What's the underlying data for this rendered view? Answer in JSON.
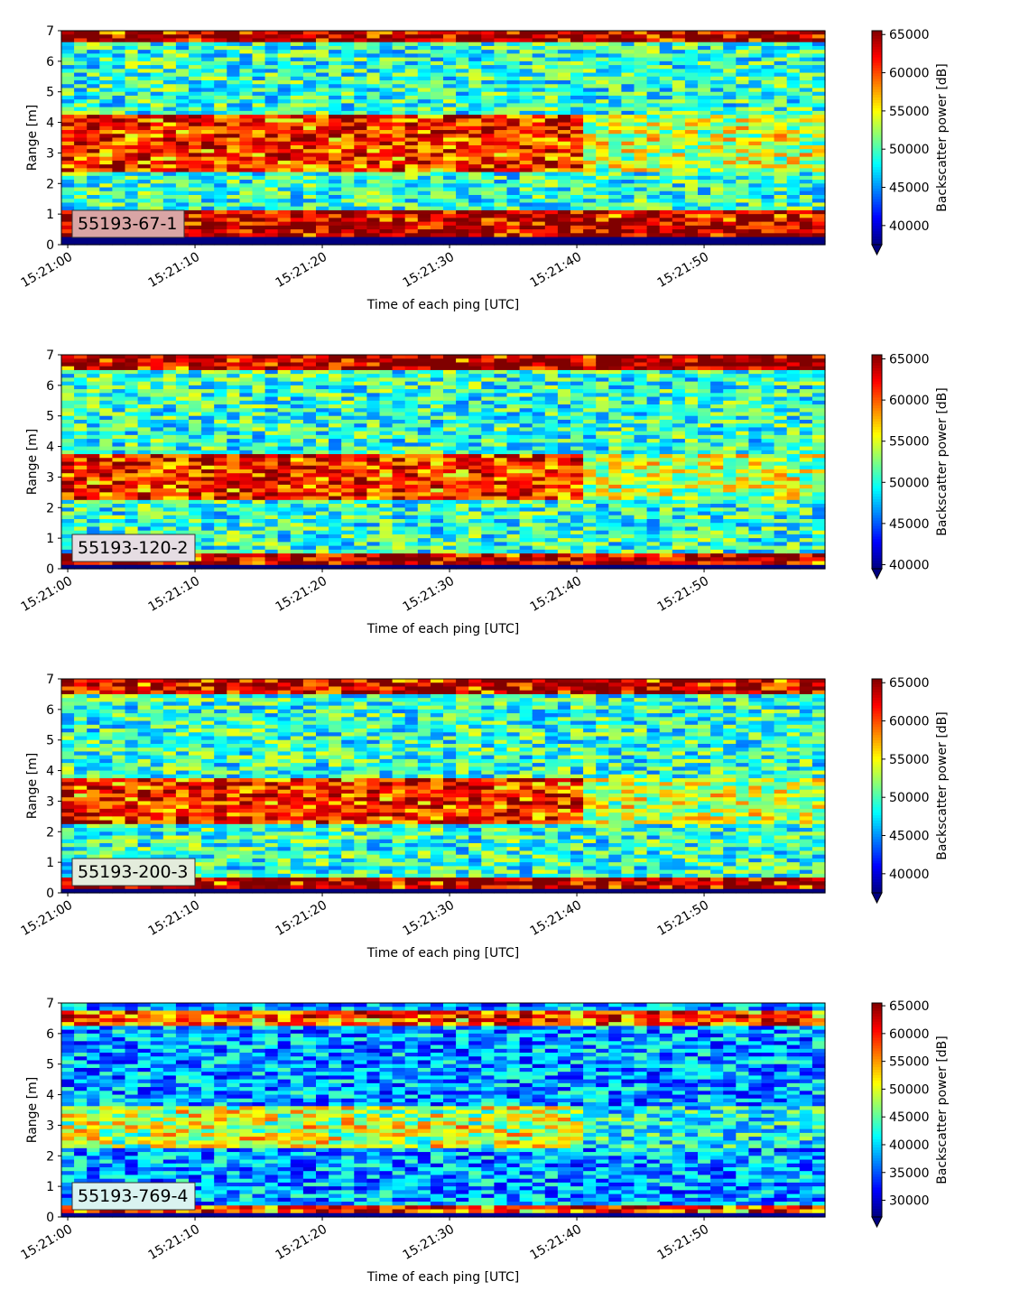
{
  "chart_data": [
    {
      "type": "heatmap",
      "label": "55193-67-1",
      "xlabel": "Time of each ping [UTC]",
      "ylabel": "Range [m]",
      "colorbar_label": "Backscatter power [dB]",
      "x_ticks": [
        "15:21:00",
        "15:21:10",
        "15:21:20",
        "15:21:30",
        "15:21:40",
        "15:21:50"
      ],
      "x_range_seconds": [
        -0.5,
        59.5
      ],
      "y_ticks": [
        0,
        1,
        2,
        3,
        4,
        5,
        6,
        7
      ],
      "ylim": [
        0,
        7
      ],
      "colorbar_ticks": [
        40000,
        45000,
        50000,
        55000,
        60000,
        65000
      ],
      "colorbar_range": [
        37500,
        65500
      ],
      "colormap": "jet",
      "colorbar_extend": "min",
      "band_structure": [
        {
          "range_m": [
            0.25,
            1.1
          ],
          "level": "high"
        },
        {
          "range_m": [
            2.4,
            4.2
          ],
          "level": "high",
          "fades_after": "15:21:40"
        },
        {
          "range_m": [
            6.6,
            7.0
          ],
          "level": "high"
        }
      ],
      "label_box_color": "#d9a5a5"
    },
    {
      "type": "heatmap",
      "label": "55193-120-2",
      "xlabel": "Time of each ping [UTC]",
      "ylabel": "Range [m]",
      "colorbar_label": "Backscatter power [dB]",
      "x_ticks": [
        "15:21:00",
        "15:21:10",
        "15:21:20",
        "15:21:30",
        "15:21:40",
        "15:21:50"
      ],
      "x_range_seconds": [
        -0.5,
        59.5
      ],
      "y_ticks": [
        0,
        1,
        2,
        3,
        4,
        5,
        6,
        7
      ],
      "ylim": [
        0,
        7
      ],
      "colorbar_ticks": [
        40000,
        45000,
        50000,
        55000,
        60000,
        65000
      ],
      "colorbar_range": [
        39500,
        65500
      ],
      "colormap": "jet",
      "colorbar_extend": "min",
      "band_structure": [
        {
          "range_m": [
            0.15,
            0.45
          ],
          "level": "high"
        },
        {
          "range_m": [
            2.2,
            3.8
          ],
          "level": "high",
          "fades_after": "15:21:40"
        },
        {
          "range_m": [
            6.5,
            7.0
          ],
          "level": "high"
        }
      ],
      "label_box_color": "#e6dde3"
    },
    {
      "type": "heatmap",
      "label": "55193-200-3",
      "xlabel": "Time of each ping [UTC]",
      "ylabel": "Range [m]",
      "colorbar_label": "Backscatter power [dB]",
      "x_ticks": [
        "15:21:00",
        "15:21:10",
        "15:21:20",
        "15:21:30",
        "15:21:40",
        "15:21:50"
      ],
      "x_range_seconds": [
        -0.5,
        59.5
      ],
      "y_ticks": [
        0,
        1,
        2,
        3,
        4,
        5,
        6,
        7
      ],
      "ylim": [
        0,
        7
      ],
      "colorbar_ticks": [
        40000,
        45000,
        50000,
        55000,
        60000,
        65000
      ],
      "colorbar_range": [
        37500,
        65500
      ],
      "colormap": "jet",
      "colorbar_extend": "min",
      "band_structure": [
        {
          "range_m": [
            0.15,
            0.45
          ],
          "level": "high"
        },
        {
          "range_m": [
            2.2,
            3.8
          ],
          "level": "high",
          "fades_after": "15:21:40"
        },
        {
          "range_m": [
            6.5,
            7.0
          ],
          "level": "high"
        }
      ],
      "label_box_color": "#e3ecdc"
    },
    {
      "type": "heatmap",
      "label": "55193-769-4",
      "xlabel": "Time of each ping [UTC]",
      "ylabel": "Range [m]",
      "colorbar_label": "Backscatter power [dB]",
      "x_ticks": [
        "15:21:00",
        "15:21:10",
        "15:21:20",
        "15:21:30",
        "15:21:40",
        "15:21:50"
      ],
      "x_range_seconds": [
        -0.5,
        59.5
      ],
      "y_ticks": [
        0,
        1,
        2,
        3,
        4,
        5,
        6,
        7
      ],
      "ylim": [
        0,
        7
      ],
      "colorbar_ticks": [
        30000,
        35000,
        40000,
        45000,
        50000,
        55000,
        60000,
        65000
      ],
      "colorbar_range": [
        27000,
        65500
      ],
      "colormap": "jet",
      "colorbar_extend": "min",
      "band_structure": [
        {
          "range_m": [
            0.1,
            0.35
          ],
          "level": "high"
        },
        {
          "range_m": [
            2.2,
            3.6
          ],
          "level": "medium",
          "fades_after": "15:21:40"
        },
        {
          "range_m": [
            6.3,
            6.7
          ],
          "level": "high"
        }
      ],
      "label_box_color": "#d9f3f0"
    }
  ]
}
